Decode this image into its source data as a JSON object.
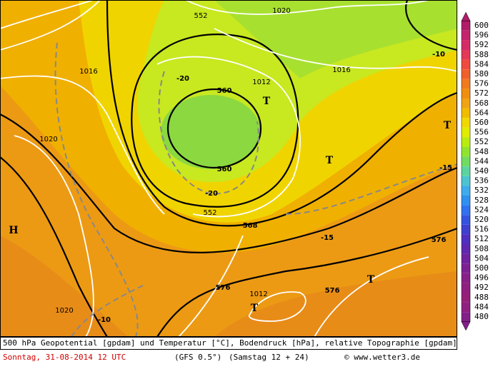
{
  "map": {
    "caption": {
      "line1": "500 hPa Geopotential [gpdam] und Temperatur [°C], Bodendruck [hPa], relative Topographie [gpdam]",
      "date": "Sonntag, 31-08-2014  12 UTC",
      "model": "(GFS 0.5°)",
      "run": "(Samstag 12 + 24)",
      "credit": "© www.wetter3.de"
    },
    "legend": [
      {
        "value": 600,
        "color": "#b01c68"
      },
      {
        "value": 596,
        "color": "#c4246c"
      },
      {
        "value": 592,
        "color": "#d42c68"
      },
      {
        "value": 588,
        "color": "#e43858"
      },
      {
        "value": 584,
        "color": "#f04a40"
      },
      {
        "value": 580,
        "color": "#f0602c"
      },
      {
        "value": 576,
        "color": "#f07a1c"
      },
      {
        "value": 572,
        "color": "#f08e10"
      },
      {
        "value": 568,
        "color": "#f0a414"
      },
      {
        "value": 564,
        "color": "#f0bc00"
      },
      {
        "value": 560,
        "color": "#f0d800"
      },
      {
        "value": 556,
        "color": "#e0ec00"
      },
      {
        "value": 552,
        "color": "#b8ec10"
      },
      {
        "value": 548,
        "color": "#90e430"
      },
      {
        "value": 544,
        "color": "#70dc60"
      },
      {
        "value": 540,
        "color": "#5cd4a0"
      },
      {
        "value": 536,
        "color": "#4cc4d0"
      },
      {
        "value": 532,
        "color": "#3cacec"
      },
      {
        "value": 528,
        "color": "#3090f0"
      },
      {
        "value": 524,
        "color": "#3072f0"
      },
      {
        "value": 520,
        "color": "#3454e0"
      },
      {
        "value": 516,
        "color": "#4040d0"
      },
      {
        "value": 512,
        "color": "#5030c0"
      },
      {
        "value": 508,
        "color": "#6028b0"
      },
      {
        "value": 504,
        "color": "#7022a0"
      },
      {
        "value": 500,
        "color": "#7e2094"
      },
      {
        "value": 496,
        "color": "#882088"
      },
      {
        "value": 492,
        "color": "#902080"
      },
      {
        "value": 488,
        "color": "#962078"
      },
      {
        "value": 484,
        "color": "#902080"
      },
      {
        "value": 480,
        "color": "#84208a"
      }
    ],
    "labels": [
      "560",
      "560",
      "568",
      "576",
      "576",
      "576",
      "1012",
      "1016",
      "1016",
      "1020",
      "1020",
      "1020",
      "1012",
      "-20",
      "-20",
      "-15",
      "-15",
      "-10",
      "-10",
      "552",
      "552",
      "T",
      "T",
      "T",
      "T",
      "T",
      "H"
    ]
  }
}
